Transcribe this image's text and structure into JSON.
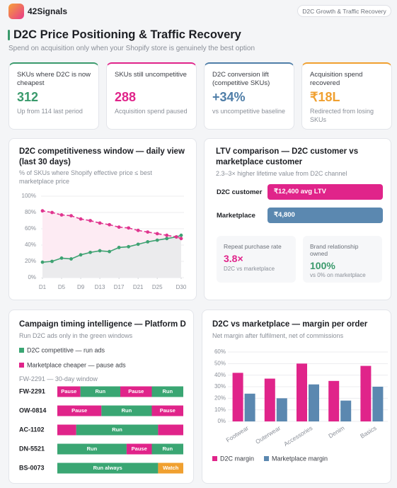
{
  "header": {
    "brand": "42Signals",
    "tag": "D2C Growth & Traffic Recovery",
    "title": "D2C Price Positioning & Traffic Recovery",
    "subtitle": "Spend on acquisition only when your Shopify store is genuinely the best option"
  },
  "kpis": [
    {
      "label": "SKUs where D2C is now cheapest",
      "value": "312",
      "note": "Up from 114 last period",
      "color": "#3a9a6c"
    },
    {
      "label": "SKUs still uncompetitive",
      "value": "288",
      "note": "Acquisition spend paused",
      "color": "#e0248a"
    },
    {
      "label": "D2C conversion lift (competitive SKUs)",
      "value": "+34%",
      "note": "vs uncompetitive baseline",
      "color": "#4f7ea8"
    },
    {
      "label": "Acquisition spend recovered",
      "value": "₹18L",
      "note": "Redirected from losing SKUs",
      "color": "#f0a030"
    }
  ],
  "chart_data": [
    {
      "type": "line",
      "title": "D2C competitiveness window — daily view (last 30 days)",
      "subtitle": "% of SKUs where Shopify effective price ≤ best marketplace price",
      "x": [
        1,
        3,
        5,
        7,
        9,
        11,
        13,
        15,
        17,
        19,
        21,
        23,
        25,
        27,
        29,
        30
      ],
      "series": [
        {
          "color": "#3ea272",
          "values": [
            19,
            20,
            24,
            23,
            28,
            31,
            33,
            32,
            37,
            38,
            41,
            44,
            46,
            48,
            50,
            52
          ]
        },
        {
          "color": "#e0358f",
          "dashed": true,
          "values": [
            82,
            80,
            77,
            76,
            72,
            70,
            67,
            65,
            62,
            61,
            58,
            56,
            54,
            52,
            50,
            48
          ]
        }
      ],
      "xlim": [
        1,
        30
      ],
      "xticks": [
        {
          "value": 1,
          "label": "D1"
        },
        {
          "value": 5,
          "label": "D5"
        },
        {
          "value": 9,
          "label": "D9"
        },
        {
          "value": 13,
          "label": "D13"
        },
        {
          "value": 17,
          "label": "D17"
        },
        {
          "value": 21,
          "label": "D21"
        },
        {
          "value": 25,
          "label": "D25"
        },
        {
          "value": 30,
          "label": "D30"
        }
      ],
      "ylim": [
        0,
        100
      ],
      "yticks": [
        {
          "value": 0,
          "label": "0%"
        },
        {
          "value": 20,
          "label": "20%"
        },
        {
          "value": 40,
          "label": "40%"
        },
        {
          "value": 60,
          "label": "60%"
        },
        {
          "value": 80,
          "label": "80%"
        },
        {
          "value": 100,
          "label": "100%"
        }
      ],
      "grid": true
    },
    {
      "type": "bar",
      "title": "D2C vs marketplace — margin per order",
      "subtitle": "Net margin after fulfilment, net of commissions",
      "categories": [
        "Footwear",
        "Outerwear",
        "Accessories",
        "Denim",
        "Basics"
      ],
      "series": [
        {
          "name": "D2C margin",
          "color": "#e0248a",
          "values": [
            42,
            37,
            50,
            35,
            48
          ]
        },
        {
          "name": "Marketplace margin",
          "color": "#5b88b0",
          "values": [
            24,
            20,
            32,
            18,
            30
          ]
        }
      ],
      "ylim": [
        0,
        60
      ],
      "yticks": [
        {
          "value": 0,
          "label": "0%"
        },
        {
          "value": 10,
          "label": "10%"
        },
        {
          "value": 20,
          "label": "20%"
        },
        {
          "value": 30,
          "label": "30%"
        },
        {
          "value": 40,
          "label": "40%"
        },
        {
          "value": 50,
          "label": "50%"
        },
        {
          "value": 60,
          "label": "60%"
        }
      ],
      "grid": true,
      "legend": "bottom"
    }
  ],
  "ltv": {
    "title": "LTV comparison — D2C customer vs marketplace customer",
    "subtitle": "2.3–3× higher lifetime value from D2C channel",
    "rows": [
      {
        "label": "D2C customer",
        "value": "₹12,400 avg LTV",
        "color": "#e0248a"
      },
      {
        "label": "Marketplace",
        "value": "₹4,800",
        "color": "#5b88b0"
      }
    ],
    "stats": [
      {
        "label": "Repeat purchase rate",
        "value": "3.8×",
        "note": "D2C vs marketplace",
        "color": "#e0248a"
      },
      {
        "label": "Brand relationship owned",
        "value": "100%",
        "note": "vs 0% on marketplace",
        "color": "#3a9a6c"
      }
    ]
  },
  "timeline": {
    "title": "Campaign timing intelligence — Platform D",
    "subtitle": "Run D2C ads only in the green windows",
    "legend": [
      {
        "label": "D2C competitive — run ads",
        "color": "#3aa673"
      },
      {
        "label": "Marketplace cheaper — pause ads",
        "color": "#e0248a"
      }
    ],
    "window": "FW-2291 — 30-day window",
    "days": 30,
    "rows": [
      {
        "sku": "FW-2291",
        "segments": [
          {
            "label": "Pause",
            "color": "#e0248a",
            "start": 0,
            "end": 5.5
          },
          {
            "label": "Run",
            "color": "#3aa673",
            "start": 5.5,
            "end": 15
          },
          {
            "label": "Pause",
            "color": "#e0248a",
            "start": 15,
            "end": 22.5
          },
          {
            "label": "Run",
            "color": "#3aa673",
            "start": 22.5,
            "end": 30
          }
        ]
      },
      {
        "sku": "OW-0814",
        "segments": [
          {
            "label": "Pause",
            "color": "#e0248a",
            "start": 0,
            "end": 10.5
          },
          {
            "label": "Run",
            "color": "#3aa673",
            "start": 10.5,
            "end": 22.5
          },
          {
            "label": "Pause",
            "color": "#e0248a",
            "start": 22.5,
            "end": 30
          }
        ]
      },
      {
        "sku": "AC-1102",
        "segments": [
          {
            "label": null,
            "color": "#e0248a",
            "start": 0,
            "end": 4.5
          },
          {
            "label": "Run",
            "color": "#3aa673",
            "start": 4.5,
            "end": 24
          },
          {
            "label": null,
            "color": "#e0248a",
            "start": 24,
            "end": 30
          }
        ]
      },
      {
        "sku": "DN-5521",
        "segments": [
          {
            "label": "Run",
            "color": "#3aa673",
            "start": 0,
            "end": 16.5
          },
          {
            "label": "Pause",
            "color": "#e0248a",
            "start": 16.5,
            "end": 22.5
          },
          {
            "label": "Run",
            "color": "#3aa673",
            "start": 22.5,
            "end": 30
          }
        ]
      },
      {
        "sku": "BS-0073",
        "segments": [
          {
            "label": "Run always",
            "color": "#3aa673",
            "start": 0,
            "end": 24
          },
          {
            "label": "Watch",
            "color": "#f0a030",
            "start": 24,
            "end": 30
          }
        ]
      }
    ]
  }
}
